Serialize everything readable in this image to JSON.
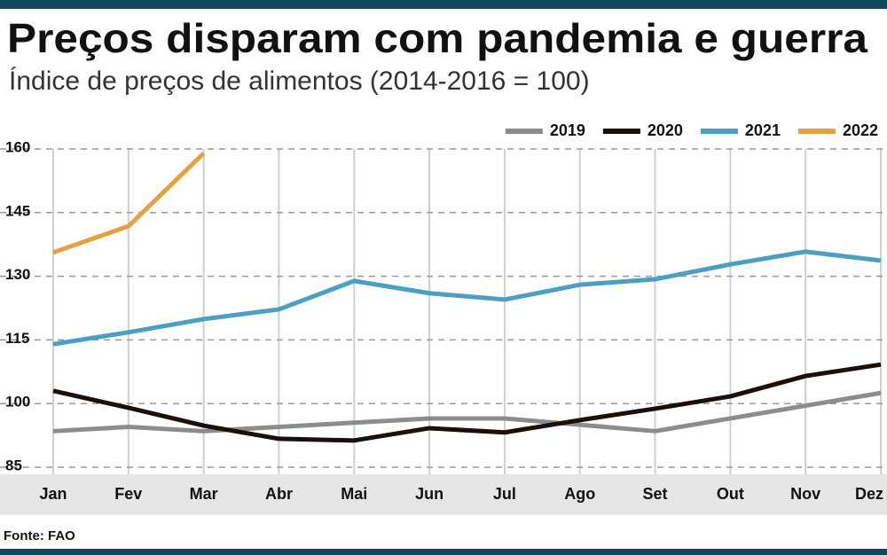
{
  "chart_data": {
    "type": "line",
    "title": "Preços disparam com pandemia e guerra",
    "subtitle": "Índice de preços de alimentos (2014-2016 = 100)",
    "source": "Fonte: FAO",
    "categories": [
      "Jan",
      "Fev",
      "Mar",
      "Abr",
      "Mai",
      "Jun",
      "Jul",
      "Ago",
      "Set",
      "Out",
      "Nov",
      "Dez"
    ],
    "series": [
      {
        "name": "2019",
        "color": "#8c8c8c",
        "values": [
          93.5,
          94.5,
          93.5,
          94.5,
          95.5,
          96.5,
          96.5,
          95,
          93.5,
          96.5,
          99.5,
          102.5
        ]
      },
      {
        "name": "2020",
        "color": "#1a0f0a",
        "values": [
          103,
          99,
          94.8,
          91.7,
          91.3,
          94.2,
          93.2,
          96.1,
          98.8,
          101.7,
          106.5,
          109.2
        ]
      },
      {
        "name": "2021",
        "color": "#4a9fc2",
        "values": [
          114,
          116.8,
          119.9,
          122.2,
          128.9,
          126,
          124.5,
          128,
          129.3,
          132.8,
          135.8,
          133.7
        ]
      },
      {
        "name": "2022",
        "color": "#e6a040",
        "values": [
          135.6,
          141.8,
          159,
          null,
          null,
          null,
          null,
          null,
          null,
          null,
          null,
          null
        ]
      }
    ],
    "ylim": [
      85,
      160
    ],
    "yticks": [
      85,
      100,
      115,
      130,
      145,
      160
    ],
    "grid": true,
    "legend": "top-right"
  }
}
